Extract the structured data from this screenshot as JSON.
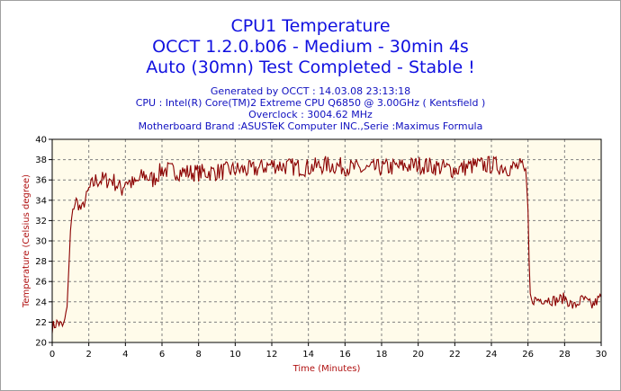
{
  "chart_data": {
    "type": "line",
    "title_lines": [
      "CPU1 Temperature",
      "OCCT 1.2.0.b06 - Medium - 30min 4s",
      "Auto (30mn) Test Completed - Stable !"
    ],
    "info_lines": [
      "Generated by OCCT : 14.03.08 23:13:18",
      "CPU : Intel(R) Core(TM)2 Extreme CPU Q6850 @ 3.00GHz ( Kentsfield )",
      "Overclock : 3004.62 MHz",
      "Motherboard Brand :ASUSTeK Computer INC.,Serie :Maximus Formula"
    ],
    "xlabel": "Time (Minutes)",
    "ylabel": "Temperature (Celsius degree)",
    "xlim": [
      0,
      30
    ],
    "ylim": [
      20,
      40
    ],
    "x_ticks": [
      0,
      2,
      4,
      6,
      8,
      10,
      12,
      14,
      16,
      18,
      20,
      22,
      24,
      26,
      28,
      30
    ],
    "y_ticks": [
      20,
      22,
      24,
      26,
      28,
      30,
      32,
      34,
      36,
      38,
      40
    ],
    "grid": true,
    "series": [
      {
        "color": "#8b0000",
        "x": [
          0,
          0.3,
          0.6,
          0.8,
          0.9,
          1.0,
          1.1,
          1.3,
          1.6,
          2.0,
          2.4,
          2.8,
          3.3,
          3.8,
          4.0,
          4.5,
          5.0,
          5.5,
          6.0,
          7.0,
          8.0,
          9.0,
          10.0,
          11.0,
          12.0,
          13.0,
          14.0,
          15.0,
          16.0,
          17.0,
          18.0,
          19.0,
          20.0,
          21.0,
          22.0,
          23.0,
          24.0,
          25.0,
          25.6,
          25.9,
          26.0,
          26.1,
          26.2,
          26.5,
          27.0,
          27.5,
          28.0,
          28.5,
          29.0,
          29.5,
          30.0
        ],
        "y": [
          21.5,
          22,
          21.5,
          23,
          27,
          31,
          33,
          34,
          33,
          35,
          36,
          36,
          36,
          35,
          36,
          35.5,
          36.5,
          36,
          37,
          36.8,
          36.7,
          36.8,
          37,
          37,
          37.5,
          37.3,
          37.2,
          37.5,
          37.3,
          37,
          37.2,
          37.3,
          37.5,
          37.3,
          37,
          37.4,
          37.5,
          37.2,
          37.3,
          36.5,
          33,
          25,
          24.2,
          24.2,
          24.3,
          24.1,
          24.4,
          23.5,
          24.3,
          23.6,
          24.5
        ]
      }
    ]
  }
}
